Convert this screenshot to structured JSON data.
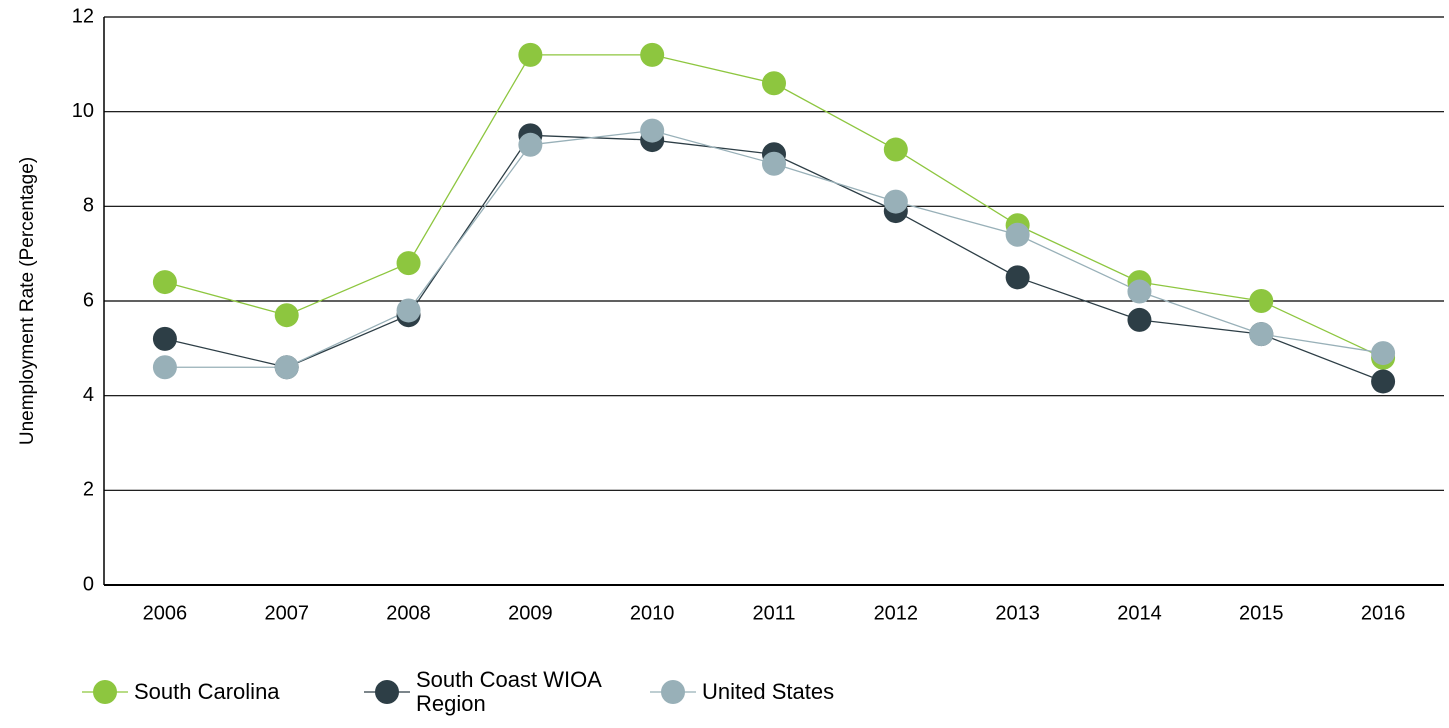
{
  "chart_data": {
    "type": "line",
    "y_label": "Unemployment Rate (Percentage)",
    "categories": [
      "2006",
      "2007",
      "2008",
      "2009",
      "2010",
      "2011",
      "2012",
      "2013",
      "2014",
      "2015",
      "2016"
    ],
    "series": [
      {
        "name": "South Carolina",
        "color": "#8dc63f",
        "values": [
          6.4,
          5.7,
          6.8,
          11.2,
          11.2,
          10.6,
          9.2,
          7.6,
          6.4,
          6.0,
          4.8
        ]
      },
      {
        "name": "South Coast WIOA Region",
        "color": "#2d3e46",
        "values": [
          5.2,
          4.6,
          5.7,
          9.5,
          9.4,
          9.1,
          7.9,
          6.5,
          5.6,
          5.3,
          4.3
        ]
      },
      {
        "name": "United States",
        "color": "#98b0b8",
        "values": [
          4.6,
          4.6,
          5.8,
          9.3,
          9.6,
          8.9,
          8.1,
          7.4,
          6.2,
          5.3,
          4.9
        ]
      }
    ],
    "ylim": [
      0,
      12
    ],
    "yticks": [
      0,
      2,
      4,
      6,
      8,
      10,
      12
    ],
    "grid": true,
    "legend": "bottom"
  }
}
